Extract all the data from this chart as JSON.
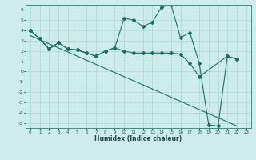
{
  "xlabel": "Humidex (Indice chaleur)",
  "background_color": "#ceecea",
  "grid_color": "#aed4d0",
  "line_color": "#1a7060",
  "xlim": [
    -0.5,
    23.5
  ],
  "ylim": [
    -5.5,
    6.5
  ],
  "xticks": [
    0,
    1,
    2,
    3,
    4,
    5,
    6,
    7,
    8,
    9,
    10,
    11,
    12,
    13,
    14,
    15,
    16,
    17,
    18,
    19,
    20,
    21,
    22,
    23
  ],
  "yticks": [
    -5,
    -4,
    -3,
    -2,
    -1,
    0,
    1,
    2,
    3,
    4,
    5,
    6
  ],
  "line1_x": [
    0,
    1,
    2,
    3,
    4,
    5,
    6,
    7,
    8,
    9,
    10,
    11,
    12,
    13,
    14,
    15,
    16,
    17,
    18,
    19,
    20,
    21,
    22
  ],
  "line1_y": [
    4.0,
    3.2,
    2.2,
    2.8,
    2.2,
    2.1,
    1.8,
    1.5,
    2.0,
    2.3,
    5.2,
    5.0,
    4.4,
    4.8,
    6.3,
    6.5,
    3.3,
    3.8,
    0.8,
    -5.2,
    -5.3,
    1.5,
    1.2
  ],
  "line2_x": [
    0,
    1,
    2,
    3,
    4,
    5,
    6,
    7,
    8,
    9,
    10,
    11,
    12,
    13,
    14,
    15,
    16,
    17,
    18,
    21,
    22
  ],
  "line2_y": [
    4.0,
    3.2,
    2.2,
    2.8,
    2.2,
    2.1,
    1.8,
    1.5,
    2.0,
    2.3,
    2.0,
    1.8,
    1.8,
    1.8,
    1.8,
    1.8,
    1.7,
    0.8,
    -0.5,
    1.5,
    1.2
  ],
  "line3_x": [
    0,
    22
  ],
  "line3_y": [
    3.5,
    -5.3
  ]
}
